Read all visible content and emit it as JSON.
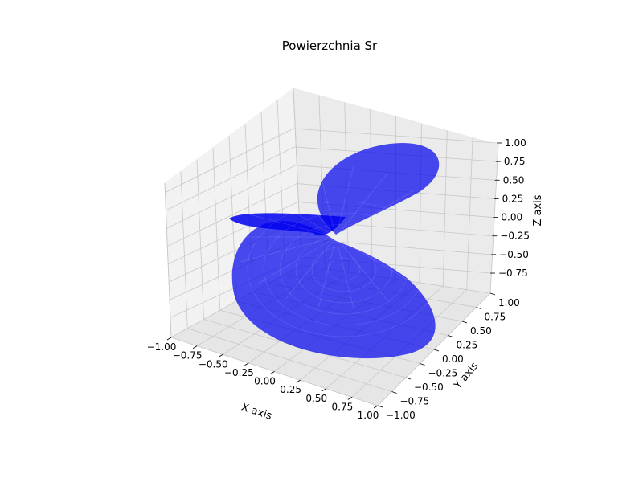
{
  "chart_data": {
    "type": "surface3d",
    "title": "Powierzchnia Sr",
    "xlabel": "X axis",
    "ylabel": "Y axis",
    "zlabel": "Z axis",
    "xlim": [
      -1.0,
      1.0
    ],
    "ylim": [
      -1.0,
      1.0
    ],
    "zlim": [
      -0.75,
      1.0
    ],
    "x_ticks": [
      "−1.00",
      "−0.75",
      "−0.50",
      "−0.25",
      "0.00",
      "0.25",
      "0.50",
      "0.75",
      "1.00"
    ],
    "y_ticks": [
      "−1.00",
      "−0.75",
      "−0.50",
      "−0.25",
      "0.00",
      "0.25",
      "0.50",
      "0.75",
      "1.00"
    ],
    "z_ticks": [
      "−0.75",
      "−0.50",
      "−0.25",
      "0.00",
      "0.25",
      "0.50",
      "0.75",
      "1.00"
    ],
    "surface_color": "#0000ee",
    "surface_opacity": 0.7,
    "grid": true
  }
}
